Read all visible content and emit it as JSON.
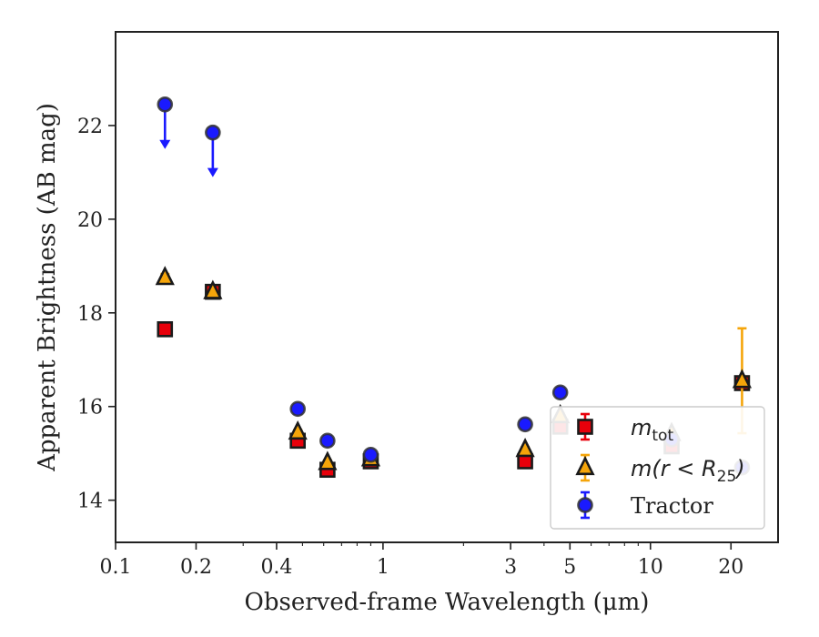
{
  "chart_data": {
    "type": "scatter",
    "title": "",
    "xlabel": "Observed-frame Wavelength (μm)",
    "ylabel": "Apparent Brightness (AB mag)",
    "xscale": "log",
    "xlim": [
      0.1,
      30
    ],
    "ylim": [
      24.0,
      13.1
    ],
    "y_inverted": true,
    "x_ticks": [
      {
        "value": 0.1,
        "label": "0.1"
      },
      {
        "value": 0.2,
        "label": "0.2"
      },
      {
        "value": 0.4,
        "label": "0.4"
      },
      {
        "value": 1,
        "label": "1"
      },
      {
        "value": 3,
        "label": "3"
      },
      {
        "value": 5,
        "label": "5"
      },
      {
        "value": 10,
        "label": "10"
      },
      {
        "value": 20,
        "label": "20"
      }
    ],
    "y_ticks": [
      {
        "value": 14,
        "label": "14"
      },
      {
        "value": 16,
        "label": "16"
      },
      {
        "value": 18,
        "label": "18"
      },
      {
        "value": 20,
        "label": "20"
      },
      {
        "value": 22,
        "label": "22"
      }
    ],
    "grid": false,
    "legend_position": "lower-right",
    "series": [
      {
        "name": "m_tot",
        "legend_label": "m",
        "legend_sub": "tot",
        "marker": "square",
        "color": "#e8000b",
        "errcolor": "#e8000b",
        "points": [
          {
            "x": 0.153,
            "y": 17.65,
            "err": 0.05
          },
          {
            "x": 0.231,
            "y": 18.45,
            "err": 0.05
          },
          {
            "x": 0.48,
            "y": 15.27,
            "err": 0.05
          },
          {
            "x": 0.62,
            "y": 14.65,
            "err": 0.05
          },
          {
            "x": 0.9,
            "y": 14.83,
            "err": 0.05
          },
          {
            "x": 3.4,
            "y": 14.83,
            "err": 0.05
          },
          {
            "x": 4.6,
            "y": 15.57,
            "err": 0.05
          },
          {
            "x": 12.0,
            "y": 15.15,
            "err": 0.05
          },
          {
            "x": 22.0,
            "y": 16.5,
            "err": 0.05
          }
        ]
      },
      {
        "name": "m(r < R25)",
        "legend_label": "m(r < R",
        "legend_sub": "25",
        "legend_tail": ")",
        "marker": "triangle",
        "color": "#f5a50a",
        "errcolor": "#f5a50a",
        "points": [
          {
            "x": 0.153,
            "y": 18.75,
            "err": 0.08
          },
          {
            "x": 0.231,
            "y": 18.45,
            "err": 0.05
          },
          {
            "x": 0.48,
            "y": 15.45,
            "err": 0.05
          },
          {
            "x": 0.62,
            "y": 14.8,
            "err": 0.05
          },
          {
            "x": 0.9,
            "y": 14.88,
            "err": 0.05
          },
          {
            "x": 3.4,
            "y": 15.08,
            "err": 0.05
          },
          {
            "x": 4.6,
            "y": 15.8,
            "err": 0.05
          },
          {
            "x": 12.0,
            "y": 15.42,
            "err": 0.05
          },
          {
            "x": 22.0,
            "y": 16.55,
            "err": 1.12
          }
        ]
      },
      {
        "name": "Tractor",
        "legend_label": "Tractor",
        "marker": "circle",
        "color": "#1a1aff",
        "errcolor": "#1a1aff",
        "points": [
          {
            "x": 0.153,
            "y": 22.45,
            "err": 0.0,
            "upper_limit": true
          },
          {
            "x": 0.231,
            "y": 21.85,
            "err": 0.0,
            "upper_limit": true
          },
          {
            "x": 0.48,
            "y": 15.95,
            "err": 0.1
          },
          {
            "x": 0.62,
            "y": 15.27,
            "err": 0.1
          },
          {
            "x": 0.9,
            "y": 14.97,
            "err": 0.05
          },
          {
            "x": 3.4,
            "y": 15.62,
            "err": 0.1
          },
          {
            "x": 4.6,
            "y": 16.3,
            "err": 0.1
          },
          {
            "x": 12.0,
            "y": 15.3,
            "err": 0.1
          },
          {
            "x": 22.0,
            "y": 14.7,
            "err": 0.1
          }
        ]
      }
    ]
  }
}
